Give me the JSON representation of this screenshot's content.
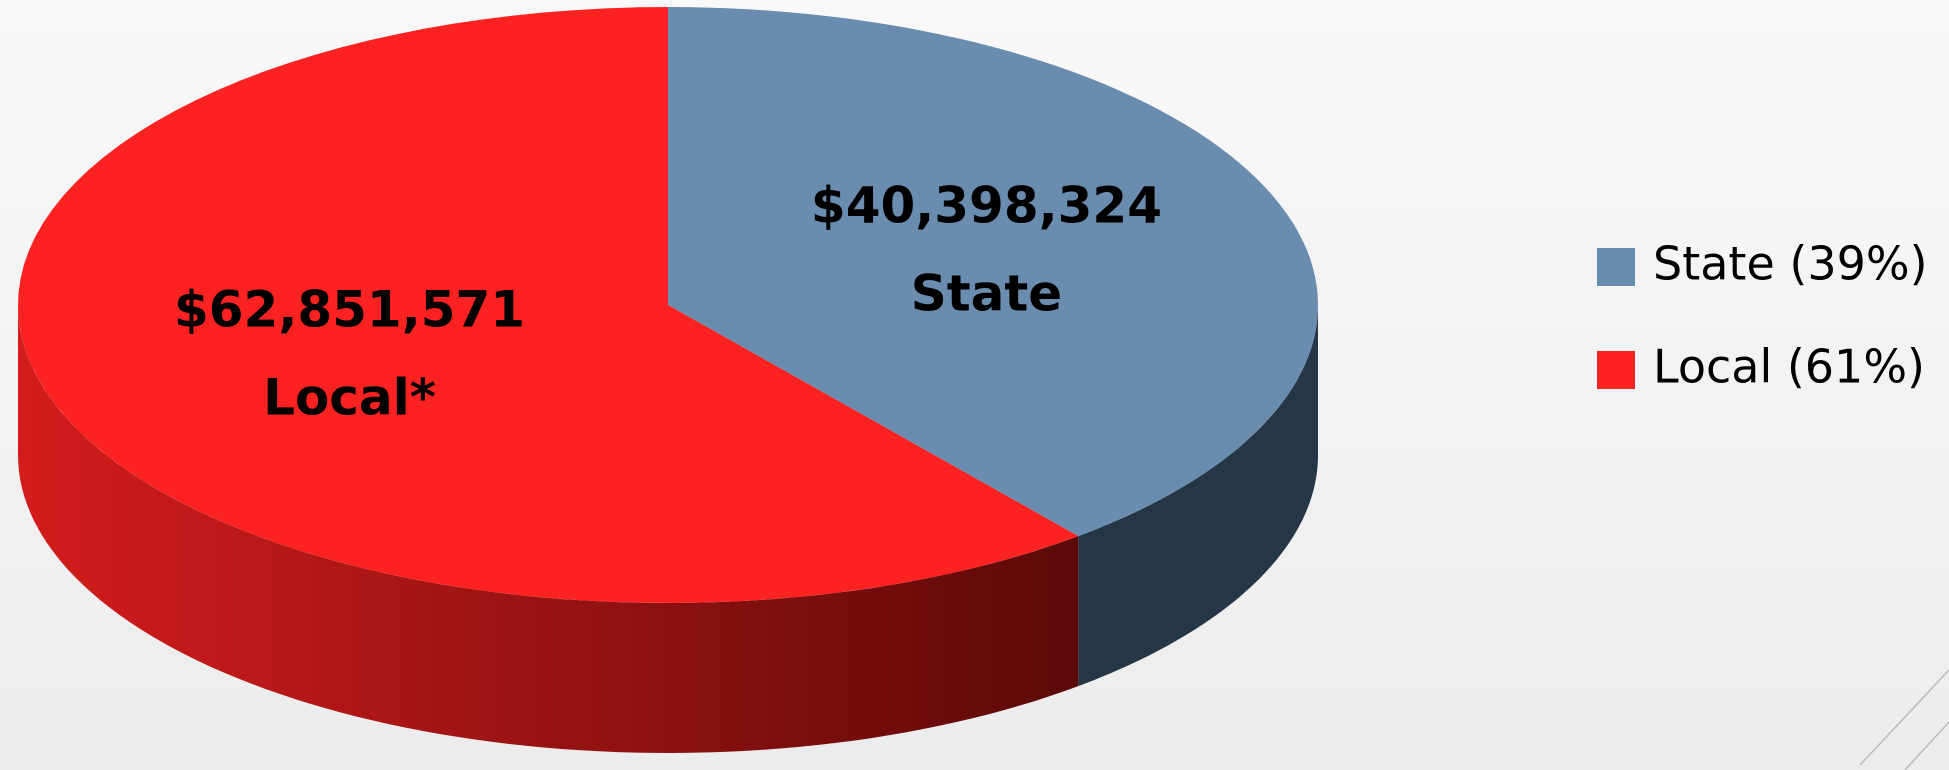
{
  "chart_data": {
    "type": "pie",
    "categories": [
      "State",
      "Local*"
    ],
    "values": [
      40398324,
      62851571
    ],
    "value_labels": [
      "$40,398,324",
      "$62,851,571"
    ],
    "legend_labels": [
      "State (39%)",
      "Local (61%)"
    ],
    "colors": [
      "#6a8cae",
      "#fc2222"
    ],
    "side_colors": [
      "#253746",
      "#a01212"
    ]
  }
}
